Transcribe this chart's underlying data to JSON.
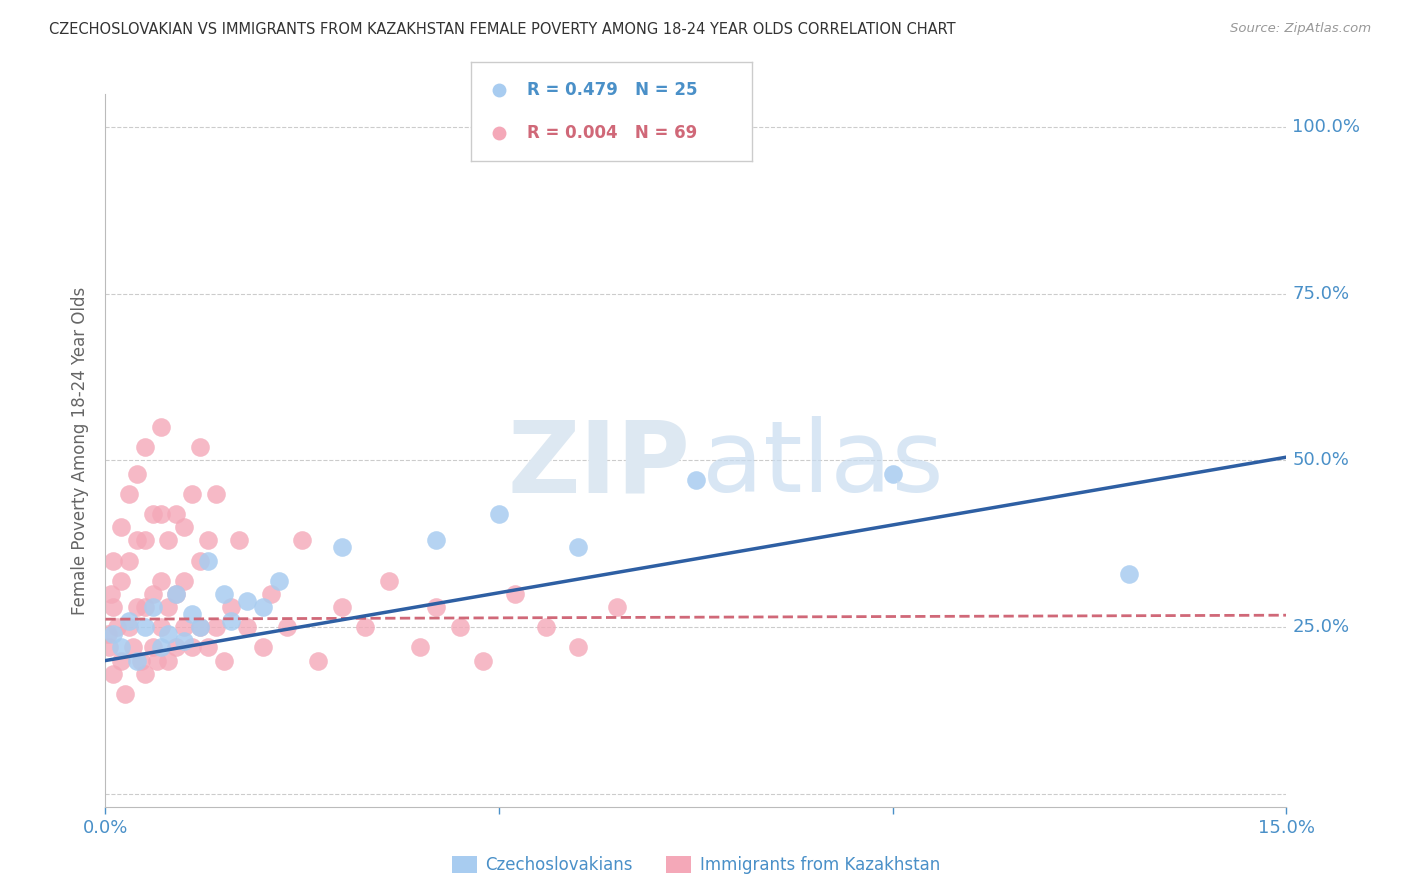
{
  "title": "CZECHOSLOVAKIAN VS IMMIGRANTS FROM KAZAKHSTAN FEMALE POVERTY AMONG 18-24 YEAR OLDS CORRELATION CHART",
  "source": "Source: ZipAtlas.com",
  "ylabel": "Female Poverty Among 18-24 Year Olds",
  "yticks": [
    0.0,
    0.25,
    0.5,
    0.75,
    1.0
  ],
  "ytick_labels": [
    "",
    "25.0%",
    "50.0%",
    "75.0%",
    "100.0%"
  ],
  "xmin": 0.0,
  "xmax": 0.15,
  "ymin": -0.02,
  "ymax": 1.05,
  "label_blue": "Czechoslovakians",
  "label_pink": "Immigrants from Kazakhstan",
  "color_blue": "#A8CCF0",
  "color_pink": "#F4A8B8",
  "line_blue": "#2E5FA3",
  "line_pink": "#D06878",
  "blue_r": "0.479",
  "blue_n": "25",
  "pink_r": "0.004",
  "pink_n": "69",
  "background_color": "#FFFFFF",
  "grid_color": "#CCCCCC",
  "blue_scatter_x": [
    0.001,
    0.002,
    0.003,
    0.004,
    0.005,
    0.006,
    0.007,
    0.008,
    0.009,
    0.01,
    0.011,
    0.012,
    0.013,
    0.015,
    0.016,
    0.018,
    0.02,
    0.022,
    0.03,
    0.042,
    0.05,
    0.06,
    0.075,
    0.1,
    0.13
  ],
  "blue_scatter_y": [
    0.24,
    0.22,
    0.26,
    0.2,
    0.25,
    0.28,
    0.22,
    0.24,
    0.3,
    0.23,
    0.27,
    0.25,
    0.35,
    0.3,
    0.26,
    0.29,
    0.28,
    0.32,
    0.37,
    0.38,
    0.42,
    0.37,
    0.47,
    0.48,
    0.33
  ],
  "pink_scatter_x": [
    0.0003,
    0.0005,
    0.0007,
    0.001,
    0.001,
    0.001,
    0.0015,
    0.002,
    0.002,
    0.002,
    0.0025,
    0.003,
    0.003,
    0.003,
    0.0035,
    0.004,
    0.004,
    0.004,
    0.0045,
    0.005,
    0.005,
    0.005,
    0.005,
    0.006,
    0.006,
    0.006,
    0.0065,
    0.007,
    0.007,
    0.007,
    0.007,
    0.008,
    0.008,
    0.008,
    0.009,
    0.009,
    0.009,
    0.01,
    0.01,
    0.01,
    0.011,
    0.011,
    0.012,
    0.012,
    0.012,
    0.013,
    0.013,
    0.014,
    0.014,
    0.015,
    0.016,
    0.017,
    0.018,
    0.02,
    0.021,
    0.023,
    0.025,
    0.027,
    0.03,
    0.033,
    0.036,
    0.04,
    0.042,
    0.045,
    0.048,
    0.052,
    0.056,
    0.06,
    0.065
  ],
  "pink_scatter_y": [
    0.24,
    0.22,
    0.3,
    0.18,
    0.28,
    0.35,
    0.25,
    0.2,
    0.32,
    0.4,
    0.15,
    0.25,
    0.35,
    0.45,
    0.22,
    0.28,
    0.38,
    0.48,
    0.2,
    0.18,
    0.28,
    0.38,
    0.52,
    0.22,
    0.3,
    0.42,
    0.2,
    0.25,
    0.32,
    0.42,
    0.55,
    0.2,
    0.28,
    0.38,
    0.22,
    0.3,
    0.42,
    0.25,
    0.32,
    0.4,
    0.22,
    0.45,
    0.25,
    0.35,
    0.52,
    0.22,
    0.38,
    0.25,
    0.45,
    0.2,
    0.28,
    0.38,
    0.25,
    0.22,
    0.3,
    0.25,
    0.38,
    0.2,
    0.28,
    0.25,
    0.32,
    0.22,
    0.28,
    0.25,
    0.2,
    0.3,
    0.25,
    0.22,
    0.28
  ],
  "blue_line_x0": 0.0,
  "blue_line_x1": 0.15,
  "blue_line_y0": 0.2,
  "blue_line_y1": 0.505,
  "pink_line_x0": 0.0,
  "pink_line_x1": 0.15,
  "pink_line_y0": 0.262,
  "pink_line_y1": 0.268
}
